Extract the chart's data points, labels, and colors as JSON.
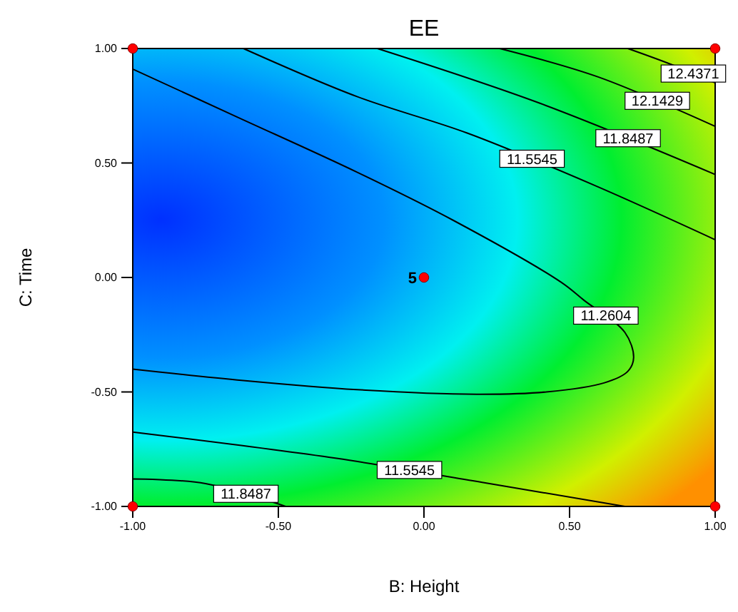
{
  "chart_data": {
    "type": "line",
    "title": "EE",
    "xlabel": "B: Height",
    "ylabel": "C: Time",
    "xlim": [
      -1,
      1
    ],
    "ylim": [
      -1,
      1
    ],
    "xticks": [
      {
        "value": -1,
        "label": "-1.00"
      },
      {
        "value": -0.5,
        "label": "-0.50"
      },
      {
        "value": 0,
        "label": "0.00"
      },
      {
        "value": 0.5,
        "label": "0.50"
      },
      {
        "value": 1,
        "label": "1.00"
      }
    ],
    "yticks": [
      {
        "value": -1,
        "label": "-1.00"
      },
      {
        "value": -0.5,
        "label": "-0.50"
      },
      {
        "value": 0,
        "label": "0.00"
      },
      {
        "value": 0.5,
        "label": "0.50"
      },
      {
        "value": 1,
        "label": "1.00"
      }
    ],
    "marker": "none",
    "line_style": "solid",
    "grid": false,
    "annotations": [
      {
        "text": "5",
        "x": 0,
        "y": 0
      }
    ],
    "series": [
      {
        "name": "11.2604",
        "color": "#000000",
        "x": [
          -1,
          -0.64,
          -0.23,
          0.1,
          0.47,
          0.55,
          0.69,
          0.72,
          0.7,
          0.62,
          0.42,
          0.18,
          -0.23,
          -0.62,
          -1
        ],
        "values": [
          0.91,
          0.7,
          0.46,
          0.25,
          -0.02,
          -0.1,
          -0.24,
          -0.35,
          -0.41,
          -0.46,
          -0.5,
          -0.51,
          -0.49,
          -0.45,
          -0.4
        ]
      },
      {
        "name": "11.5545",
        "color": "#000000",
        "x": [
          -0.62,
          -0.23,
          0.15,
          0.59,
          1
        ],
        "values": [
          1,
          0.79,
          0.63,
          0.4,
          0.165
        ]
      },
      {
        "name": "11.8487",
        "color": "#000000",
        "x": [
          -0.16,
          0.4,
          1
        ],
        "values": [
          1,
          0.76,
          0.45
        ]
      },
      {
        "name": "12.1429",
        "color": "#000000",
        "x": [
          0.26,
          0.6,
          1
        ],
        "values": [
          1,
          0.875,
          0.66
        ]
      },
      {
        "name": "12.4371",
        "color": "#000000",
        "x": [
          0.7,
          0.85,
          1
        ],
        "values": [
          1,
          0.93,
          0.85
        ]
      },
      {
        "name": "11.5545",
        "color": "#000000",
        "x": [
          -1,
          -0.3,
          0.2,
          0.69
        ],
        "values": [
          -0.675,
          -0.79,
          -0.895,
          -1
        ]
      },
      {
        "name": "11.8487",
        "color": "#000000",
        "x": [
          -1,
          -0.75,
          -0.475
        ],
        "values": [
          -0.88,
          -0.9,
          -1
        ]
      },
      {
        "type": "scatter",
        "marker": "circle",
        "color": "#ff0000",
        "x": [
          -1,
          1,
          -1,
          1,
          0
        ],
        "values": [
          1,
          1,
          -1,
          -1,
          0
        ]
      }
    ]
  }
}
